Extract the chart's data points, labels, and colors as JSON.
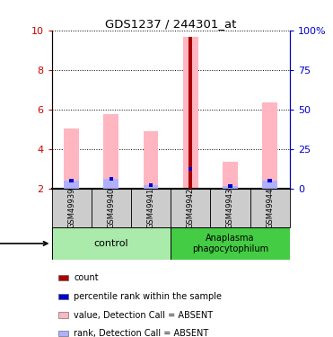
{
  "title": "GDS1237 / 244301_at",
  "samples": [
    "GSM49939",
    "GSM49940",
    "GSM49941",
    "GSM49942",
    "GSM49943",
    "GSM49944"
  ],
  "count_values": [
    2.0,
    2.0,
    2.0,
    9.65,
    2.0,
    2.0
  ],
  "rank_values": [
    2.4,
    2.5,
    2.2,
    3.0,
    2.15,
    2.4
  ],
  "pink_values": [
    5.05,
    5.75,
    4.9,
    9.65,
    3.35,
    6.35
  ],
  "light_rank_values": [
    2.4,
    2.5,
    2.2,
    2.0,
    2.15,
    2.4
  ],
  "ylim": [
    2,
    10
  ],
  "y2lim": [
    0,
    100
  ],
  "yticks": [
    2,
    4,
    6,
    8,
    10
  ],
  "y2ticks": [
    0,
    25,
    50,
    75,
    100
  ],
  "y2ticklabels": [
    "0",
    "25",
    "50",
    "75",
    "100%"
  ],
  "count_color": "#aa0000",
  "rank_color": "#0000cc",
  "pink_color": "#ffb6c1",
  "light_blue_color": "#b0b0ff",
  "left_tick_color": "#cc0000",
  "right_tick_color": "#0000cc",
  "ctrl_color": "#aaeaaa",
  "ana_color": "#44cc44",
  "sample_bg": "#cccccc",
  "legend_items": [
    {
      "color": "#aa0000",
      "label": "count"
    },
    {
      "color": "#0000cc",
      "label": "percentile rank within the sample"
    },
    {
      "color": "#ffb6c1",
      "label": "value, Detection Call = ABSENT"
    },
    {
      "color": "#b0b0ff",
      "label": "rank, Detection Call = ABSENT"
    }
  ]
}
